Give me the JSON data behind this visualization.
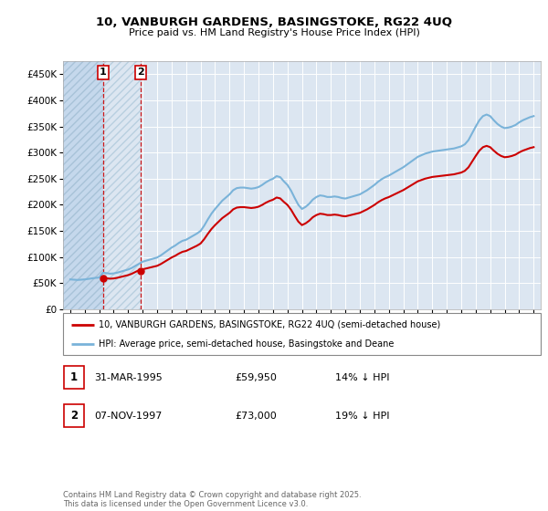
{
  "title1": "10, VANBURGH GARDENS, BASINGSTOKE, RG22 4UQ",
  "title2": "Price paid vs. HM Land Registry's House Price Index (HPI)",
  "background_color": "#ffffff",
  "plot_bg_color": "#dce6f1",
  "grid_color": "#ffffff",
  "line1_color": "#cc0000",
  "line2_color": "#7ab3d9",
  "annotation_box_color": "#cc0000",
  "legend1": "10, VANBURGH GARDENS, BASINGSTOKE, RG22 4UQ (semi-detached house)",
  "legend2": "HPI: Average price, semi-detached house, Basingstoke and Deane",
  "table_rows": [
    {
      "num": "1",
      "date": "31-MAR-1995",
      "price": "£59,950",
      "pct": "14% ↓ HPI"
    },
    {
      "num": "2",
      "date": "07-NOV-1997",
      "price": "£73,000",
      "pct": "19% ↓ HPI"
    }
  ],
  "footnote": "Contains HM Land Registry data © Crown copyright and database right 2025.\nThis data is licensed under the Open Government Licence v3.0.",
  "ylim": [
    0,
    475000
  ],
  "yticks": [
    0,
    50000,
    100000,
    150000,
    200000,
    250000,
    300000,
    350000,
    400000,
    450000
  ],
  "xlim": [
    1992.5,
    2025.5
  ],
  "xtick_years": [
    1993,
    1994,
    1995,
    1996,
    1997,
    1998,
    1999,
    2000,
    2001,
    2002,
    2003,
    2004,
    2005,
    2006,
    2007,
    2008,
    2009,
    2010,
    2011,
    2012,
    2013,
    2014,
    2015,
    2016,
    2017,
    2018,
    2019,
    2020,
    2021,
    2022,
    2023,
    2024,
    2025
  ],
  "ann1_x": 1995.25,
  "ann1_y": 59950,
  "ann2_x": 1997.85,
  "ann2_y": 73000,
  "hpi_data": {
    "years": [
      1993.0,
      1993.25,
      1993.5,
      1993.75,
      1994.0,
      1994.25,
      1994.5,
      1994.75,
      1995.0,
      1995.25,
      1995.5,
      1995.75,
      1996.0,
      1996.25,
      1996.5,
      1996.75,
      1997.0,
      1997.25,
      1997.5,
      1997.75,
      1998.0,
      1998.25,
      1998.5,
      1998.75,
      1999.0,
      1999.25,
      1999.5,
      1999.75,
      2000.0,
      2000.25,
      2000.5,
      2000.75,
      2001.0,
      2001.25,
      2001.5,
      2001.75,
      2002.0,
      2002.25,
      2002.5,
      2002.75,
      2003.0,
      2003.25,
      2003.5,
      2003.75,
      2004.0,
      2004.25,
      2004.5,
      2004.75,
      2005.0,
      2005.25,
      2005.5,
      2005.75,
      2006.0,
      2006.25,
      2006.5,
      2006.75,
      2007.0,
      2007.25,
      2007.5,
      2007.75,
      2008.0,
      2008.25,
      2008.5,
      2008.75,
      2009.0,
      2009.25,
      2009.5,
      2009.75,
      2010.0,
      2010.25,
      2010.5,
      2010.75,
      2011.0,
      2011.25,
      2011.5,
      2011.75,
      2012.0,
      2012.25,
      2012.5,
      2012.75,
      2013.0,
      2013.25,
      2013.5,
      2013.75,
      2014.0,
      2014.25,
      2014.5,
      2014.75,
      2015.0,
      2015.25,
      2015.5,
      2015.75,
      2016.0,
      2016.25,
      2016.5,
      2016.75,
      2017.0,
      2017.25,
      2017.5,
      2017.75,
      2018.0,
      2018.25,
      2018.5,
      2018.75,
      2019.0,
      2019.25,
      2019.5,
      2019.75,
      2020.0,
      2020.25,
      2020.5,
      2020.75,
      2021.0,
      2021.25,
      2021.5,
      2021.75,
      2022.0,
      2022.25,
      2022.5,
      2022.75,
      2023.0,
      2023.25,
      2023.5,
      2023.75,
      2024.0,
      2024.25,
      2024.5,
      2024.75,
      2025.0
    ],
    "values": [
      57000,
      56500,
      56000,
      56500,
      57000,
      58000,
      59000,
      60000,
      60500,
      69800,
      69000,
      68000,
      68500,
      70000,
      72000,
      74000,
      76000,
      79000,
      83000,
      87000,
      91000,
      93000,
      95000,
      97000,
      99000,
      103000,
      108000,
      113000,
      118000,
      122000,
      127000,
      131000,
      133000,
      137000,
      141000,
      145000,
      150000,
      160000,
      172000,
      183000,
      192000,
      200000,
      208000,
      214000,
      220000,
      228000,
      232000,
      233000,
      233000,
      232000,
      231000,
      232000,
      234000,
      238000,
      243000,
      247000,
      250000,
      255000,
      253000,
      245000,
      238000,
      227000,
      213000,
      200000,
      192000,
      196000,
      202000,
      210000,
      215000,
      218000,
      217000,
      215000,
      215000,
      216000,
      215000,
      213000,
      212000,
      214000,
      216000,
      218000,
      220000,
      224000,
      228000,
      233000,
      238000,
      244000,
      249000,
      253000,
      256000,
      260000,
      264000,
      268000,
      272000,
      277000,
      282000,
      287000,
      292000,
      295000,
      298000,
      300000,
      302000,
      303000,
      304000,
      305000,
      306000,
      307000,
      308000,
      310000,
      312000,
      316000,
      324000,
      337000,
      350000,
      362000,
      370000,
      373000,
      370000,
      362000,
      355000,
      350000,
      347000,
      348000,
      350000,
      353000,
      358000,
      362000,
      365000,
      368000,
      370000
    ]
  }
}
